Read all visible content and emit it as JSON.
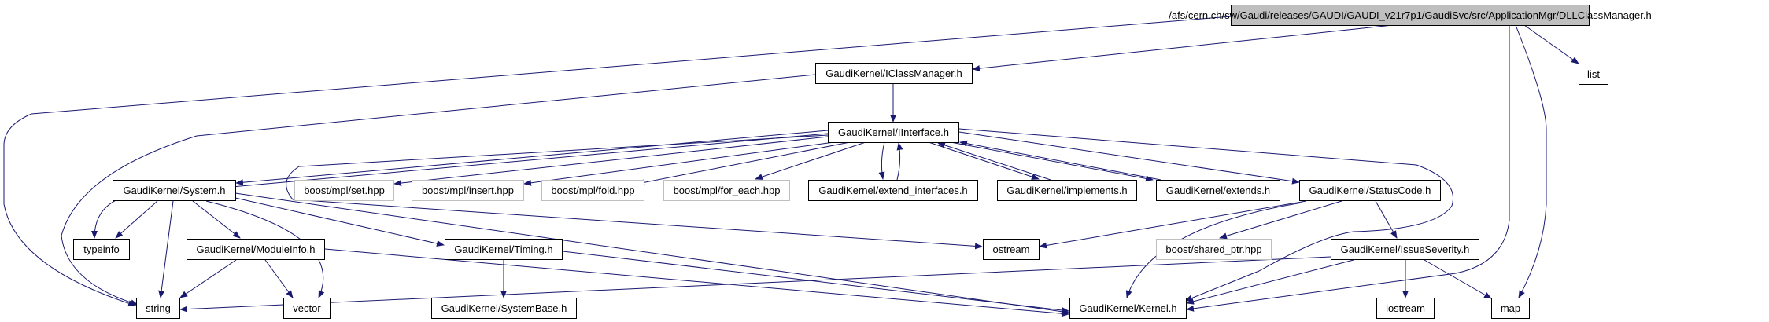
{
  "colors": {
    "edge": "#191970",
    "root_fill": "#bfbfbf",
    "external_border": "#bfbfbf"
  },
  "nodes": {
    "root": "/afs/cern.ch/sw/Gaudi/releases/GAUDI/GAUDI_v21r7p1/GaudiSvc/src/ApplicationMgr/DLLClassManager.h",
    "iclassmanager": "GaudiKernel/IClassManager.h",
    "list": "list",
    "iinterface": "GaudiKernel/IInterface.h",
    "system": "GaudiKernel/System.h",
    "set": "boost/mpl/set.hpp",
    "insert": "boost/mpl/insert.hpp",
    "fold": "boost/mpl/fold.hpp",
    "for_each": "boost/mpl/for_each.hpp",
    "extend_interfaces": "GaudiKernel/extend_interfaces.h",
    "implements": "GaudiKernel/implements.h",
    "extends": "GaudiKernel/extends.h",
    "statuscode": "GaudiKernel/StatusCode.h",
    "typeinfo": "typeinfo",
    "moduleinfo": "GaudiKernel/ModuleInfo.h",
    "timing": "GaudiKernel/Timing.h",
    "ostream": "ostream",
    "shared_ptr": "boost/shared_ptr.hpp",
    "issueseverity": "GaudiKernel/IssueSeverity.h",
    "string": "string",
    "vector": "vector",
    "systembase": "GaudiKernel/SystemBase.h",
    "kernel": "GaudiKernel/Kernel.h",
    "iostream": "iostream",
    "map": "map"
  }
}
